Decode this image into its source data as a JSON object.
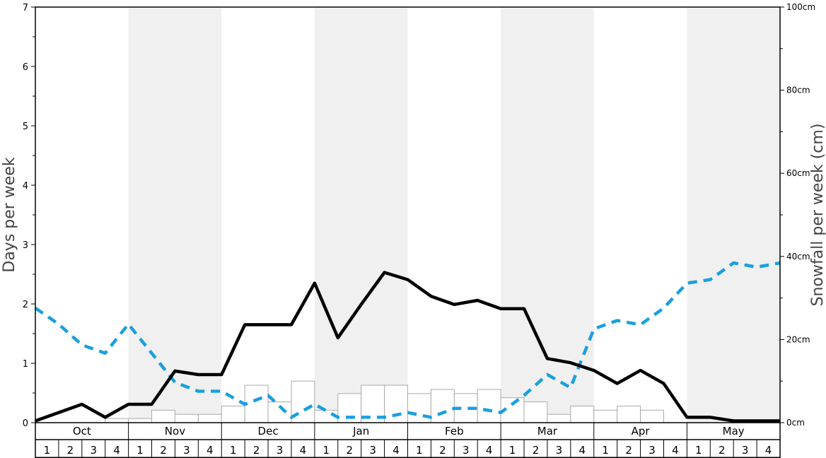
{
  "chart_data": {
    "type": "line+bar",
    "ylabel_left": "Days per week",
    "ylabel_right": "Snowfall per week (cm)",
    "ylim_left": [
      0,
      7
    ],
    "ylim_right": [
      0,
      100
    ],
    "left_ticks": [
      "0",
      "1",
      "2",
      "3",
      "4",
      "5",
      "6",
      "7"
    ],
    "right_ticks": [
      "0cm",
      "20cm",
      "40cm",
      "60cm",
      "80cm",
      "100cm"
    ],
    "months": [
      "Oct",
      "Nov",
      "Dec",
      "Jan",
      "Feb",
      "Mar",
      "Apr",
      "May"
    ],
    "weeks": [
      "1",
      "2",
      "3",
      "4"
    ],
    "grid": "alternating month shading",
    "colors": {
      "black_line": "#000000",
      "blue_dashed_line": "#1a9fe0",
      "bars_fill": "#ffffff",
      "bars_stroke": "#aaaaaa",
      "shade": "#f0f0f0"
    },
    "series": [
      {
        "axis": "left",
        "style": "solid",
        "values": [
          0.03,
          0.17,
          0.31,
          0.09,
          0.31,
          0.31,
          0.87,
          0.81,
          0.81,
          1.65,
          1.65,
          1.65,
          2.35,
          1.43,
          1.99,
          2.53,
          2.41,
          2.13,
          1.99,
          2.06,
          1.92,
          1.92,
          1.08,
          1.01,
          0.88,
          0.66,
          0.88,
          0.66,
          0.09,
          0.09,
          0.03,
          0.03,
          0.03
        ]
      },
      {
        "axis": "left",
        "style": "dashed",
        "values": [
          1.93,
          1.66,
          1.31,
          1.17,
          1.66,
          1.17,
          0.68,
          0.53,
          0.53,
          0.31,
          0.46,
          0.09,
          0.31,
          0.09,
          0.09,
          0.09,
          0.17,
          0.09,
          0.24,
          0.24,
          0.17,
          0.46,
          0.81,
          0.59,
          1.58,
          1.72,
          1.65,
          1.93,
          2.35,
          2.41,
          2.69,
          2.62,
          2.69
        ]
      },
      {
        "axis": "right",
        "style": "bar",
        "values": [
          0,
          0,
          0,
          1,
          1,
          3,
          2,
          2,
          4,
          9,
          5,
          10,
          3,
          7,
          9,
          9,
          7,
          8,
          7,
          8,
          6,
          5,
          2,
          4,
          3,
          4,
          3,
          0,
          0,
          0,
          0,
          0
        ]
      }
    ]
  }
}
